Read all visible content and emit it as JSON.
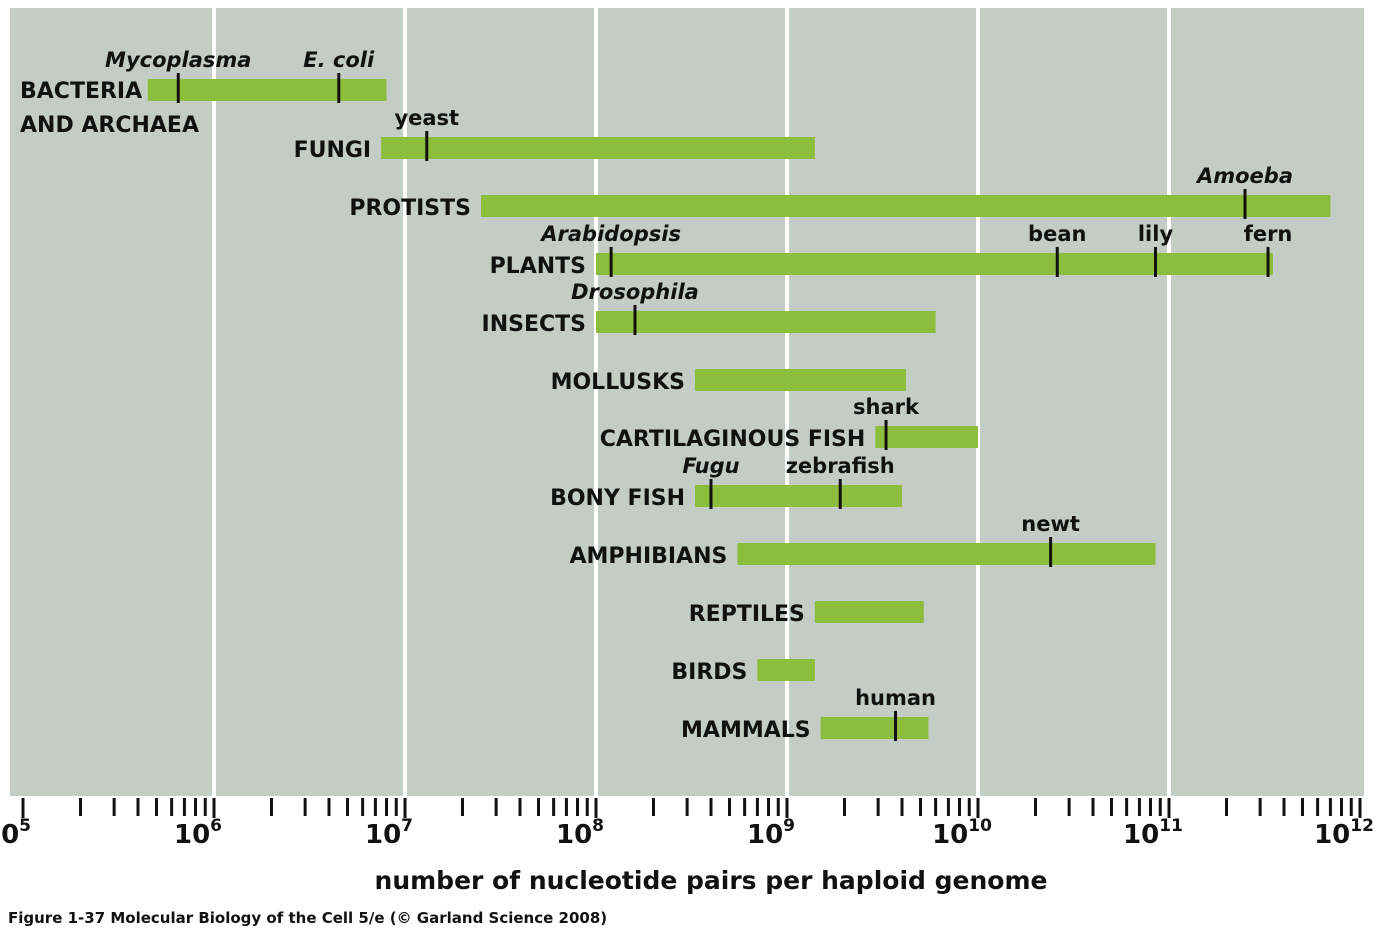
{
  "chart_data": {
    "type": "range-bar",
    "xlabel": "number of nucleotide pairs per haploid genome",
    "x_scale": "log10",
    "xlim": [
      100000,
      1000000000000
    ],
    "tick_labels": [
      {
        "base": "10",
        "exp": "5",
        "value": 100000
      },
      {
        "base": "10",
        "exp": "6",
        "value": 1000000
      },
      {
        "base": "10",
        "exp": "7",
        "value": 10000000
      },
      {
        "base": "10",
        "exp": "8",
        "value": 100000000
      },
      {
        "base": "10",
        "exp": "9",
        "value": 1000000000
      },
      {
        "base": "10",
        "exp": "10",
        "value": 10000000000
      },
      {
        "base": "10",
        "exp": "11",
        "value": 100000000000
      },
      {
        "base": "10",
        "exp": "12",
        "value": 1000000000000
      }
    ],
    "grid": true,
    "bar_color": "#8dbd3c",
    "background_color": "#c3cdc6",
    "groups": [
      {
        "label": "BACTERIA\nAND ARCHAEA",
        "range": [
          450000,
          8000000
        ],
        "markers": [
          {
            "label": "Mycoplasma",
            "value": 650000,
            "italic": true
          },
          {
            "label": "E. coli",
            "value": 4500000,
            "italic": true
          }
        ]
      },
      {
        "label": "FUNGI",
        "range": [
          7500000,
          1400000000
        ],
        "markers": [
          {
            "label": "yeast",
            "value": 13000000,
            "italic": false
          }
        ]
      },
      {
        "label": "PROTISTS",
        "range": [
          25000000,
          700000000000
        ],
        "markers": [
          {
            "label": "Amoeba",
            "value": 250000000000,
            "italic": true
          }
        ]
      },
      {
        "label": "PLANTS",
        "range": [
          100000000,
          350000000000
        ],
        "markers": [
          {
            "label": "Arabidopsis",
            "value": 120000000,
            "italic": true
          },
          {
            "label": "bean",
            "value": 26000000000,
            "italic": false
          },
          {
            "label": "lily",
            "value": 85000000000,
            "italic": false
          },
          {
            "label": "fern",
            "value": 330000000000,
            "italic": false
          }
        ]
      },
      {
        "label": "INSECTS",
        "range": [
          100000000,
          6000000000
        ],
        "markers": [
          {
            "label": "Drosophila",
            "value": 160000000,
            "italic": true
          }
        ]
      },
      {
        "label": "MOLLUSKS",
        "range": [
          330000000,
          4200000000
        ],
        "markers": []
      },
      {
        "label": "CARTILAGINOUS FISH",
        "range": [
          2900000000,
          10000000000
        ],
        "markers": [
          {
            "label": "shark",
            "value": 3300000000,
            "italic": false
          }
        ]
      },
      {
        "label": "BONY FISH",
        "range": [
          330000000,
          4000000000
        ],
        "markers": [
          {
            "label": "Fugu",
            "value": 400000000,
            "italic": true
          },
          {
            "label": "zebrafish",
            "value": 1900000000,
            "italic": false
          }
        ]
      },
      {
        "label": "AMPHIBIANS",
        "range": [
          550000000,
          85000000000
        ],
        "markers": [
          {
            "label": "newt",
            "value": 24000000000,
            "italic": false
          }
        ]
      },
      {
        "label": "REPTILES",
        "range": [
          1400000000,
          5200000000
        ],
        "markers": []
      },
      {
        "label": "BIRDS",
        "range": [
          700000000,
          1400000000
        ],
        "markers": []
      },
      {
        "label": "MAMMALS",
        "range": [
          1500000000,
          5500000000
        ],
        "markers": [
          {
            "label": "human",
            "value": 3700000000,
            "italic": false
          }
        ]
      }
    ]
  },
  "caption": "Figure 1-37  Molecular Biology of the Cell 5/e (© Garland Science 2008)"
}
